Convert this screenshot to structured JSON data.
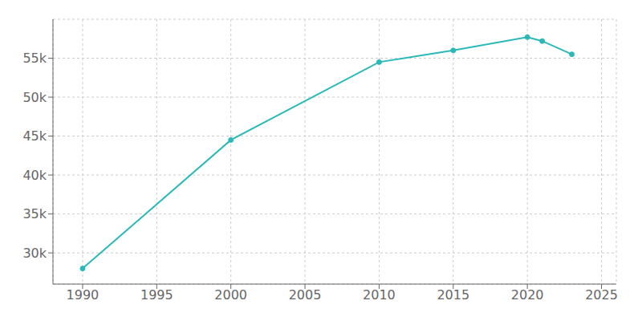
{
  "chart_data": {
    "type": "line",
    "x": [
      1990,
      2000,
      2010,
      2015,
      2020,
      2021,
      2023
    ],
    "values": [
      28000,
      44500,
      54500,
      56000,
      57700,
      57200,
      55500
    ],
    "color": "#2ab8b8",
    "marker": "circle",
    "xlim": [
      1988,
      2026
    ],
    "xticks": [
      1990,
      1995,
      2000,
      2005,
      2010,
      2015,
      2020,
      2025
    ],
    "ylim": [
      26000,
      60000
    ],
    "yticks": [
      {
        "value": 30000,
        "label": "30k"
      },
      {
        "value": 35000,
        "label": "35k"
      },
      {
        "value": 40000,
        "label": "40k"
      },
      {
        "value": 45000,
        "label": "45k"
      },
      {
        "value": 50000,
        "label": "50k"
      },
      {
        "value": 55000,
        "label": "55k"
      }
    ],
    "grid": true
  }
}
